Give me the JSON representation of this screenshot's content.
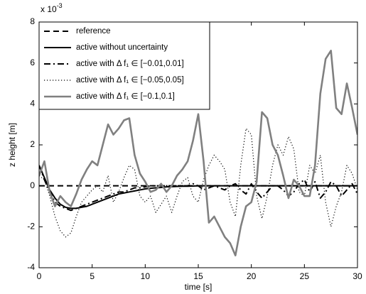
{
  "chart_data": {
    "type": "line",
    "x_label": "time [s]",
    "y_label": "z height [m]",
    "y_multiplier": "x 10",
    "y_multiplier_exponent": "-3",
    "xlim": [
      0,
      30
    ],
    "xticks": [
      0,
      5,
      10,
      15,
      20,
      25,
      30
    ],
    "ylim": [
      -4,
      8
    ],
    "yticks": [
      -4,
      -2,
      0,
      2,
      4,
      6,
      8
    ],
    "grid": false,
    "legend_position": "upper-left",
    "x": [
      0,
      0.5,
      1,
      1.5,
      2,
      2.5,
      3,
      3.5,
      4,
      4.5,
      5,
      5.5,
      6,
      6.5,
      7,
      7.5,
      8,
      8.5,
      9,
      9.5,
      10,
      10.5,
      11,
      11.5,
      12,
      12.5,
      13,
      13.5,
      14,
      14.5,
      15,
      15.5,
      16,
      16.5,
      17,
      17.5,
      18,
      18.5,
      19,
      19.5,
      20,
      20.5,
      21,
      21.5,
      22,
      22.5,
      23,
      23.5,
      24,
      24.5,
      25,
      25.5,
      26,
      26.5,
      27,
      27.5,
      28,
      28.5,
      29,
      29.5,
      30
    ],
    "series": [
      {
        "name": "reference",
        "color": "#000000",
        "dash": "dashed",
        "width": 2,
        "values": [
          0,
          0,
          0,
          0,
          0,
          0,
          0,
          0,
          0,
          0,
          0,
          0,
          0,
          0,
          0,
          0,
          0,
          0,
          0,
          0,
          0,
          0,
          0,
          0,
          0,
          0,
          0,
          0,
          0,
          0,
          0,
          0,
          0,
          0,
          0,
          0,
          0,
          0,
          0,
          0,
          0,
          0,
          0,
          0,
          0,
          0,
          0,
          0,
          0,
          0,
          0,
          0,
          0,
          0,
          0,
          0,
          0,
          0,
          0,
          0,
          0
        ]
      },
      {
        "name": "active without uncertainty",
        "color": "#000000",
        "dash": "solid",
        "width": 2,
        "values": [
          1.0,
          0.4,
          -0.2,
          -0.6,
          -0.9,
          -1.05,
          -1.1,
          -1.1,
          -1.05,
          -1.0,
          -0.9,
          -0.8,
          -0.7,
          -0.6,
          -0.5,
          -0.4,
          -0.35,
          -0.3,
          -0.25,
          -0.2,
          -0.15,
          -0.12,
          -0.1,
          -0.08,
          -0.05,
          -0.04,
          -0.03,
          -0.02,
          -0.02,
          -0.01,
          0,
          0,
          0,
          0,
          0,
          0,
          0,
          0,
          0,
          0,
          0,
          0,
          0,
          0,
          0,
          0,
          0,
          0,
          0,
          0,
          0,
          0,
          0,
          0,
          0,
          0,
          0,
          0,
          0,
          0,
          0
        ]
      },
      {
        "name": "active with Δ f₁ ∈ [−0.01,0.01]",
        "color": "#000000",
        "dash": "dashdot",
        "width": 2,
        "values": [
          1.0,
          0.3,
          -0.3,
          -0.8,
          -1.0,
          -1.1,
          -1.2,
          -1.1,
          -1.0,
          -0.9,
          -0.8,
          -0.7,
          -0.6,
          -0.5,
          -0.4,
          -0.3,
          -0.3,
          -0.2,
          -0.1,
          -0.1,
          -0.05,
          0,
          0,
          0,
          0,
          0,
          0,
          0,
          0,
          0.1,
          0,
          -0.2,
          -0.1,
          0,
          -0.1,
          -0.2,
          0,
          0.1,
          -0.2,
          -0.4,
          0.1,
          -0.3,
          -0.6,
          -0.3,
          0,
          0,
          -0.2,
          -0.5,
          -0.3,
          0.1,
          0.3,
          -0.3,
          0.2,
          -0.6,
          -0.3,
          0.2,
          0,
          -0.5,
          -0.2,
          0.1,
          -0.4
        ]
      },
      {
        "name": "active with Δ f₁ ∈ [−0.05,0.05]",
        "color": "#000000",
        "dash": "dotted",
        "width": 1.2,
        "values": [
          0.5,
          0.3,
          -0.5,
          -1.5,
          -2.2,
          -2.5,
          -2.3,
          -1.5,
          -0.8,
          -0.5,
          -0.2,
          0.0,
          -0.3,
          0.5,
          -0.8,
          -0.3,
          0.4,
          1.0,
          0.8,
          -0.5,
          -0.8,
          -0.5,
          -1.3,
          -0.9,
          -0.5,
          -1.3,
          -0.5,
          0.2,
          0.4,
          -0.5,
          -0.8,
          0.3,
          1.0,
          1.5,
          1.2,
          0.8,
          -0.8,
          -1.5,
          1.0,
          2.8,
          2.5,
          -0.5,
          -1.6,
          -0.5,
          1.0,
          2.0,
          1.5,
          2.4,
          1.8,
          -0.3,
          -0.5,
          1.0,
          0.6,
          1.5,
          -0.8,
          -2.0,
          -1.0,
          -0.3,
          1.0,
          0.6,
          -0.2
        ]
      },
      {
        "name": "active with Δ f₁ ∈ [−0.1,0.1]",
        "color": "#808080",
        "dash": "solid",
        "width": 2.6,
        "values": [
          0.5,
          1.2,
          -0.3,
          -1.0,
          -0.5,
          -0.8,
          -1.0,
          -0.4,
          0.3,
          0.8,
          1.2,
          1.0,
          2.0,
          3.0,
          2.5,
          2.8,
          3.2,
          3.3,
          1.5,
          0.6,
          0.2,
          -0.3,
          -0.2,
          0.1,
          -0.3,
          0.0,
          0.5,
          0.8,
          1.2,
          2.2,
          3.5,
          1.2,
          -1.8,
          -1.5,
          -2.0,
          -2.5,
          -2.8,
          -3.4,
          -2.0,
          -1.0,
          -0.8,
          0.2,
          3.6,
          3.3,
          2.0,
          1.5,
          0.5,
          -0.6,
          0.3,
          0.0,
          -0.5,
          -0.5,
          1.0,
          4.5,
          6.2,
          6.6,
          3.8,
          3.5,
          5.0,
          3.8,
          2.5
        ]
      }
    ]
  }
}
